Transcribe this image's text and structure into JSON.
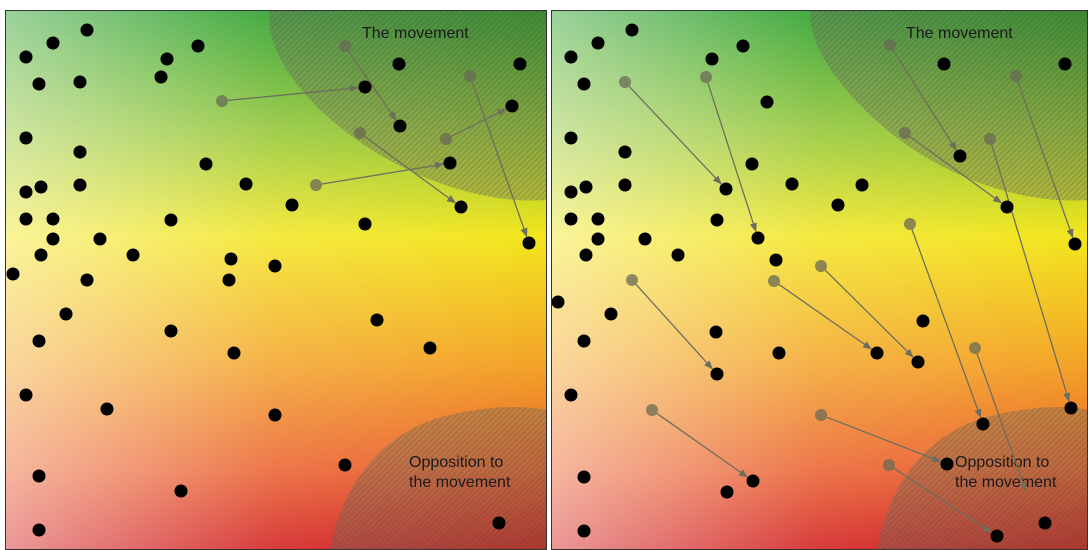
{
  "panels": [
    {
      "id": "before",
      "labels": {
        "movement": [
          "The movement"
        ],
        "opposition": [
          "Opposition to",
          "the movement"
        ]
      }
    },
    {
      "id": "after",
      "labels": {
        "movement": [
          "The movement"
        ],
        "opposition": [
          "Opposition to",
          "the movement"
        ]
      }
    }
  ],
  "colors": {
    "green": "#1a9a1a",
    "yellow": "#f2e21c",
    "orange": "#f09020",
    "red": "#d81e1e",
    "pale": "#e8d8d0",
    "dot": "#000000",
    "ghost_dot": "#6a6a55",
    "arrow": "#6e6e5e",
    "border": "#333333"
  }
}
